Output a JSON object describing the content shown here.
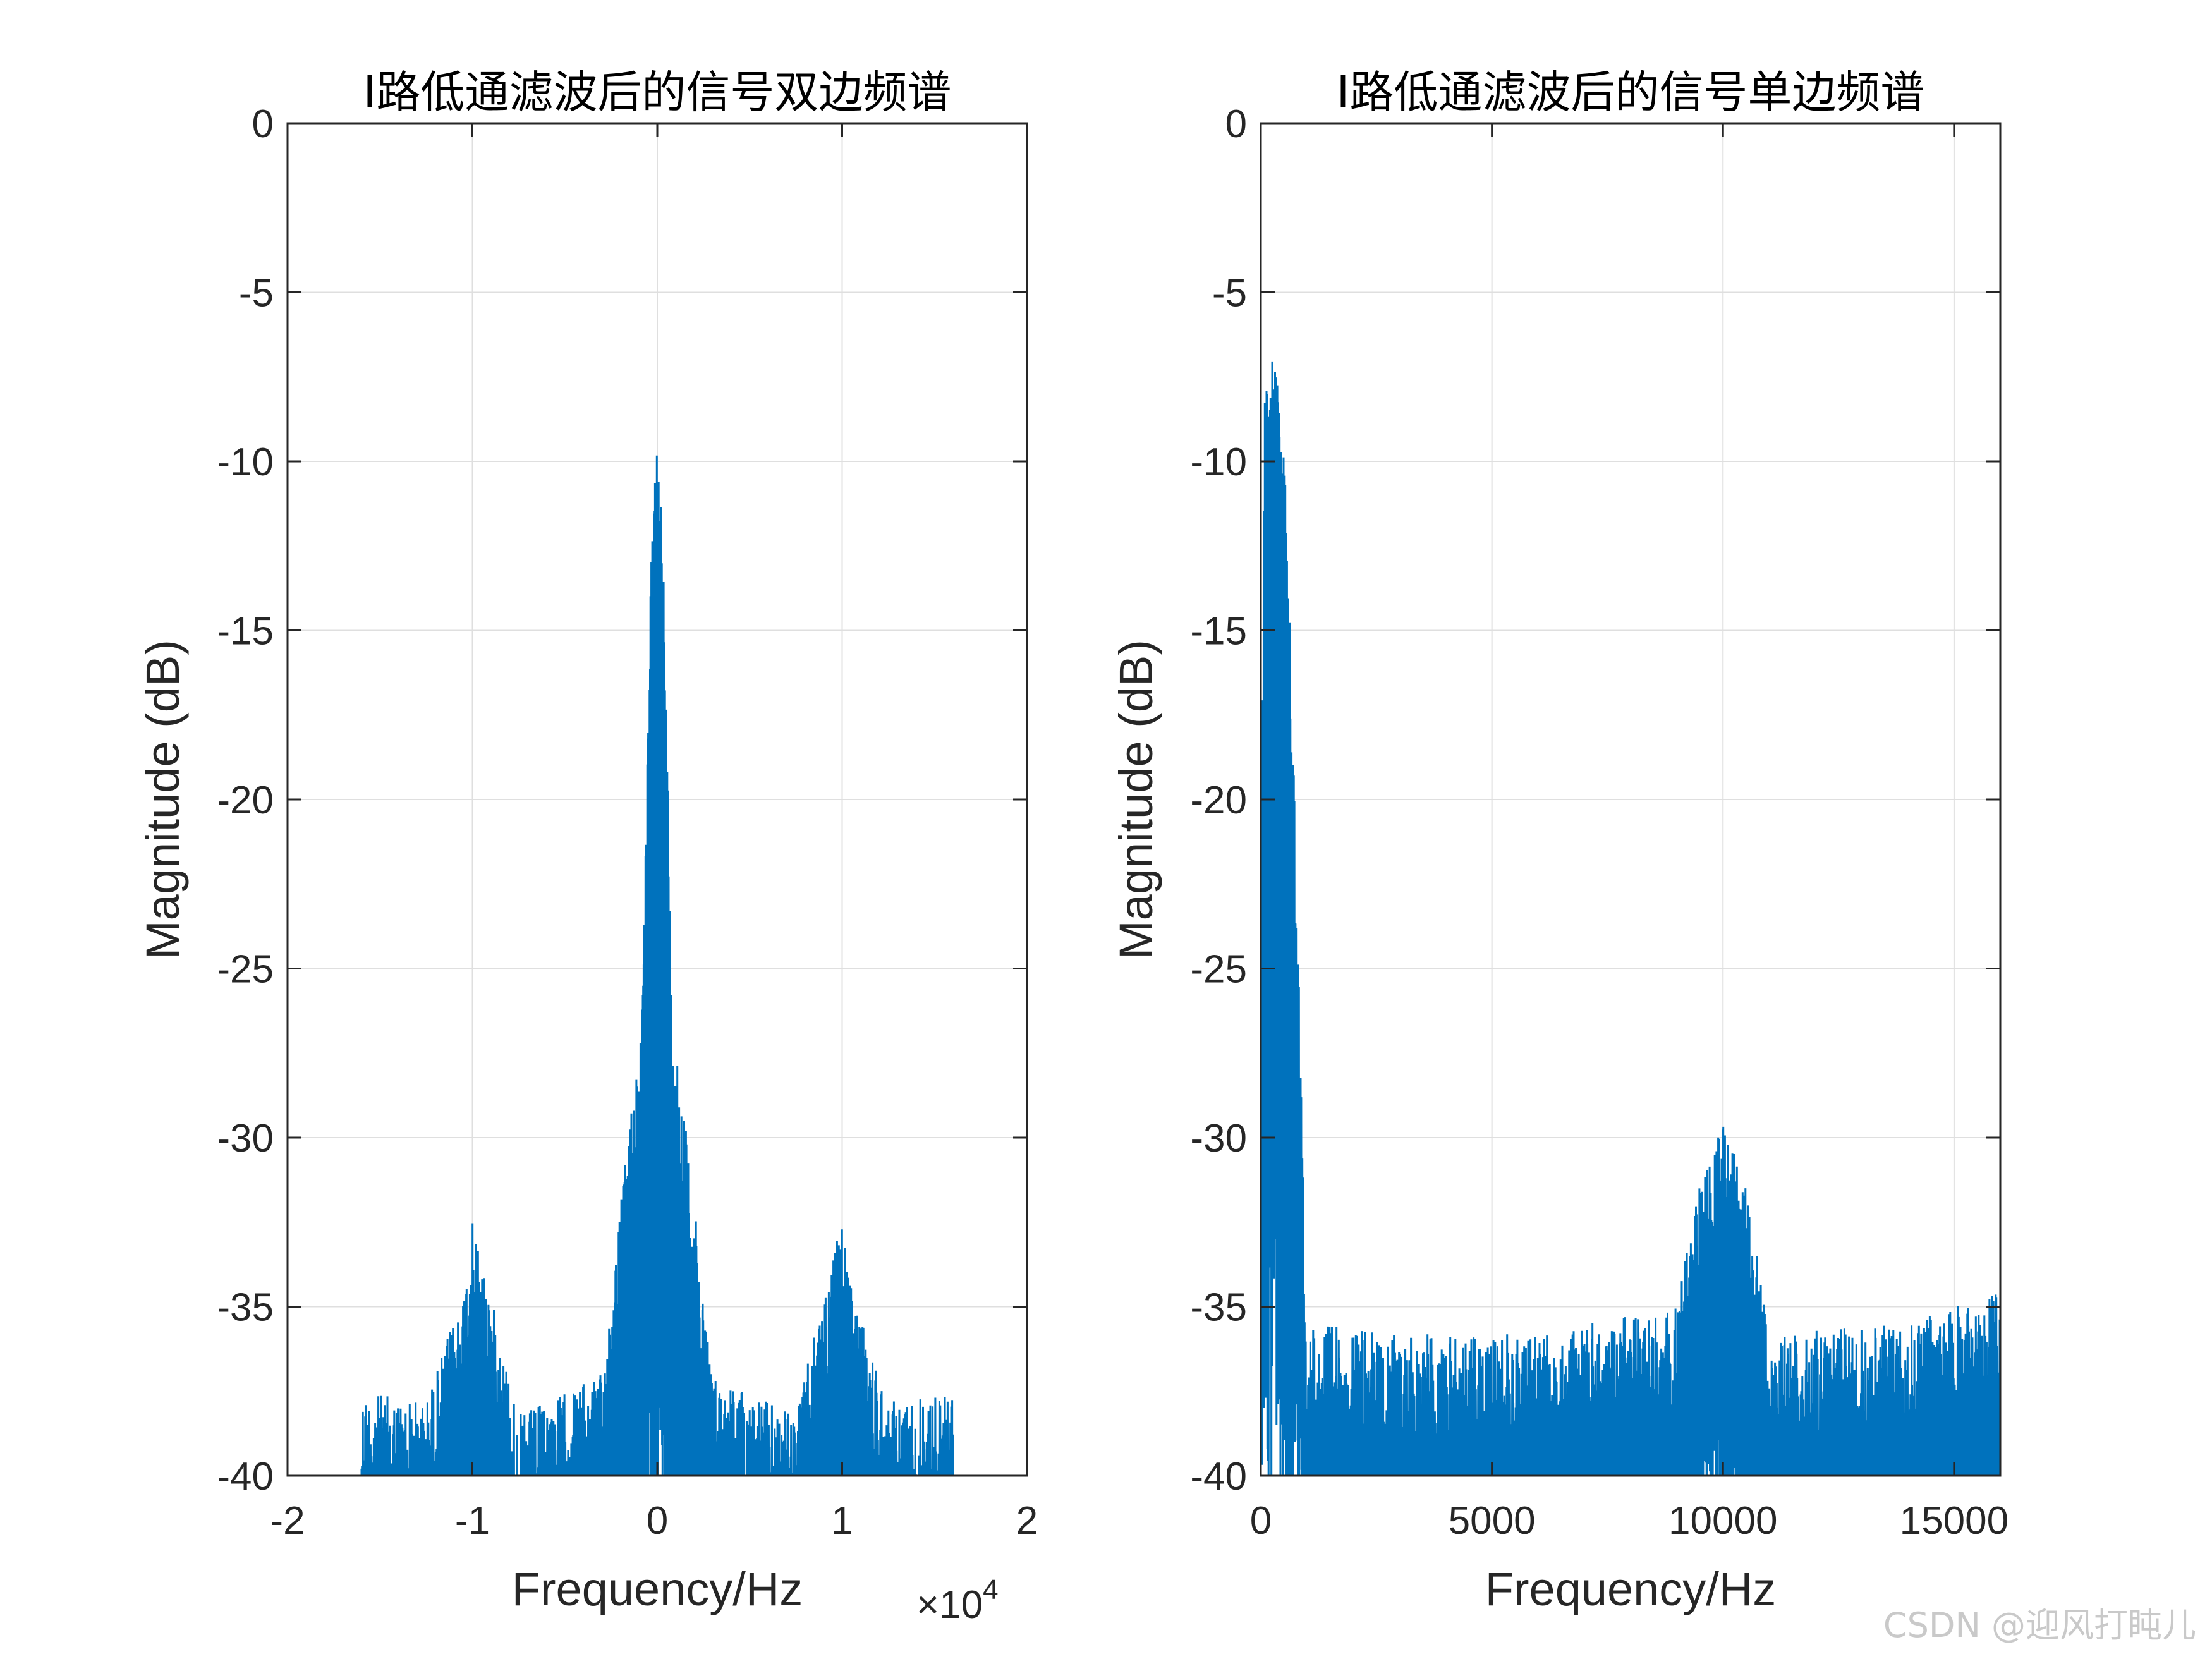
{
  "colors": {
    "line": "#0072BD",
    "axis": "#262626",
    "grid": "#dfdfdf",
    "background": "#ffffff",
    "watermark": "#c9c9c9"
  },
  "watermark": "CSDN @迎风打盹儿",
  "chart_data": [
    {
      "type": "line",
      "title": "I路低通滤波后的信号双边频谱",
      "xlabel": "Frequency/Hz",
      "ylabel": "Magnitude (dB)",
      "x_exponent_label": "×10",
      "x_exponent_power": "4",
      "xlim": [
        -2,
        2
      ],
      "ylim": [
        -40,
        0
      ],
      "grid": true,
      "xticks": [
        -2,
        -1,
        0,
        1,
        2
      ],
      "xtick_labels": [
        "-2",
        "-1",
        "0",
        "1",
        "2"
      ],
      "yticks": [
        0,
        -5,
        -10,
        -15,
        -20,
        -25,
        -30,
        -35,
        -40
      ],
      "ytick_labels": [
        "0",
        "-5",
        "-10",
        "-15",
        "-20",
        "-25",
        "-30",
        "-35",
        "-40"
      ],
      "x_range_data": [
        -1.6,
        1.6
      ],
      "envelope_peaks": [
        {
          "x": -1.6,
          "y": -37.5
        },
        {
          "x": -1.25,
          "y": -37.8
        },
        {
          "x": -1.05,
          "y": -34.5
        },
        {
          "x": -1.0,
          "y": -32.5
        },
        {
          "x": -0.95,
          "y": -33.5
        },
        {
          "x": -0.75,
          "y": -38.2
        },
        {
          "x": -0.3,
          "y": -37.0
        },
        {
          "x": -0.08,
          "y": -26.0
        },
        {
          "x": -0.03,
          "y": -12.0
        },
        {
          "x": 0.0,
          "y": -8.9
        },
        {
          "x": 0.03,
          "y": -12.0
        },
        {
          "x": 0.08,
          "y": -26.0
        },
        {
          "x": 0.3,
          "y": -37.0
        },
        {
          "x": 0.75,
          "y": -38.2
        },
        {
          "x": 0.95,
          "y": -33.5
        },
        {
          "x": 1.0,
          "y": -32.5
        },
        {
          "x": 1.05,
          "y": -34.5
        },
        {
          "x": 1.25,
          "y": -37.8
        },
        {
          "x": 1.6,
          "y": -37.5
        }
      ],
      "series": [
        {
          "values_description_free": true,
          "peak_main": -8.9,
          "peak_sidelobes": -32.5,
          "floor": -40
        }
      ]
    },
    {
      "type": "line",
      "title": "I路低通滤波后的信号单边频谱",
      "xlabel": "Frequency/Hz",
      "ylabel": "Magnitude (dB)",
      "xlim": [
        0,
        16000
      ],
      "ylim": [
        -40,
        0
      ],
      "grid": true,
      "xticks": [
        0,
        5000,
        10000,
        15000
      ],
      "xtick_labels": [
        "0",
        "5000",
        "10000",
        "15000"
      ],
      "yticks": [
        0,
        -5,
        -10,
        -15,
        -20,
        -25,
        -30,
        -35,
        -40
      ],
      "ytick_labels": [
        "0",
        "-5",
        "-10",
        "-15",
        "-20",
        "-25",
        "-30",
        "-35",
        "-40"
      ],
      "x_range_data": [
        0,
        16000
      ],
      "envelope_peaks": [
        {
          "x": 0,
          "y": -22.0
        },
        {
          "x": 100,
          "y": -6.0
        },
        {
          "x": 300,
          "y": -7.0
        },
        {
          "x": 500,
          "y": -9.0
        },
        {
          "x": 700,
          "y": -18.0
        },
        {
          "x": 900,
          "y": -30.0
        },
        {
          "x": 1000,
          "y": -35.5
        },
        {
          "x": 3000,
          "y": -35.8
        },
        {
          "x": 6000,
          "y": -35.8
        },
        {
          "x": 9000,
          "y": -35.0
        },
        {
          "x": 9500,
          "y": -31.0
        },
        {
          "x": 10000,
          "y": -29.5
        },
        {
          "x": 10500,
          "y": -31.5
        },
        {
          "x": 11000,
          "y": -35.8
        },
        {
          "x": 14000,
          "y": -35.5
        },
        {
          "x": 16000,
          "y": -34.5
        }
      ],
      "series": [
        {
          "peak_main": -5.8,
          "peak_sidelobes": -29.5,
          "floor": -40
        }
      ]
    }
  ]
}
